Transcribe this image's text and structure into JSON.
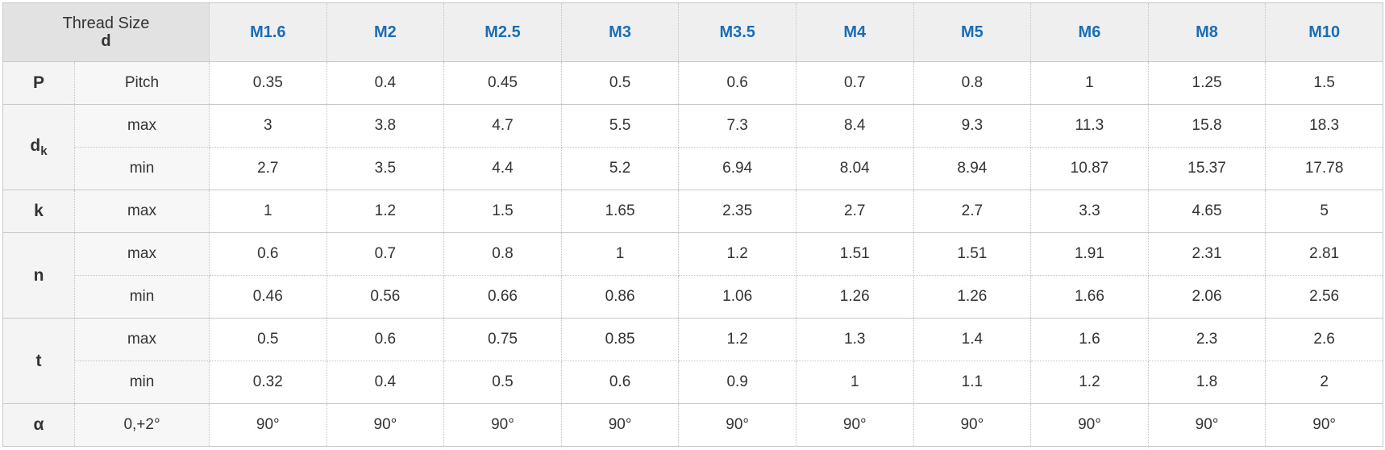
{
  "header": {
    "title": "Thread Size",
    "symbol": "d",
    "sizes": [
      "M1.6",
      "M2",
      "M2.5",
      "M3",
      "M3.5",
      "M4",
      "M5",
      "M6",
      "M8",
      "M10"
    ]
  },
  "groups": [
    {
      "symbol": "P",
      "rows": [
        {
          "label": "Pitch",
          "values": [
            0.35,
            0.4,
            0.45,
            0.5,
            0.6,
            0.7,
            0.8,
            1,
            1.25,
            1.5
          ]
        }
      ]
    },
    {
      "symbol": "d",
      "subscript": "k",
      "rows": [
        {
          "label": "max",
          "values": [
            3,
            3.8,
            4.7,
            5.5,
            7.3,
            8.4,
            9.3,
            11.3,
            15.8,
            18.3
          ]
        },
        {
          "label": "min",
          "values": [
            2.7,
            3.5,
            4.4,
            5.2,
            6.94,
            8.04,
            8.94,
            10.87,
            15.37,
            17.78
          ]
        }
      ]
    },
    {
      "symbol": "k",
      "rows": [
        {
          "label": "max",
          "values": [
            1,
            1.2,
            1.5,
            1.65,
            2.35,
            2.7,
            2.7,
            3.3,
            4.65,
            5
          ]
        }
      ]
    },
    {
      "symbol": "n",
      "rows": [
        {
          "label": "max",
          "values": [
            0.6,
            0.7,
            0.8,
            1,
            1.2,
            1.51,
            1.51,
            1.91,
            2.31,
            2.81
          ]
        },
        {
          "label": "min",
          "values": [
            0.46,
            0.56,
            0.66,
            0.86,
            1.06,
            1.26,
            1.26,
            1.66,
            2.06,
            2.56
          ]
        }
      ]
    },
    {
      "symbol": "t",
      "rows": [
        {
          "label": "max",
          "values": [
            0.5,
            0.6,
            0.75,
            0.85,
            1.2,
            1.3,
            1.4,
            1.6,
            2.3,
            2.6
          ]
        },
        {
          "label": "min",
          "values": [
            0.32,
            0.4,
            0.5,
            0.6,
            0.9,
            1,
            1.1,
            1.2,
            1.8,
            2
          ]
        }
      ]
    },
    {
      "symbol": "α",
      "rows": [
        {
          "label": "0,+2°",
          "values": [
            "90°",
            "90°",
            "90°",
            "90°",
            "90°",
            "90°",
            "90°",
            "90°",
            "90°",
            "90°"
          ]
        }
      ]
    }
  ]
}
